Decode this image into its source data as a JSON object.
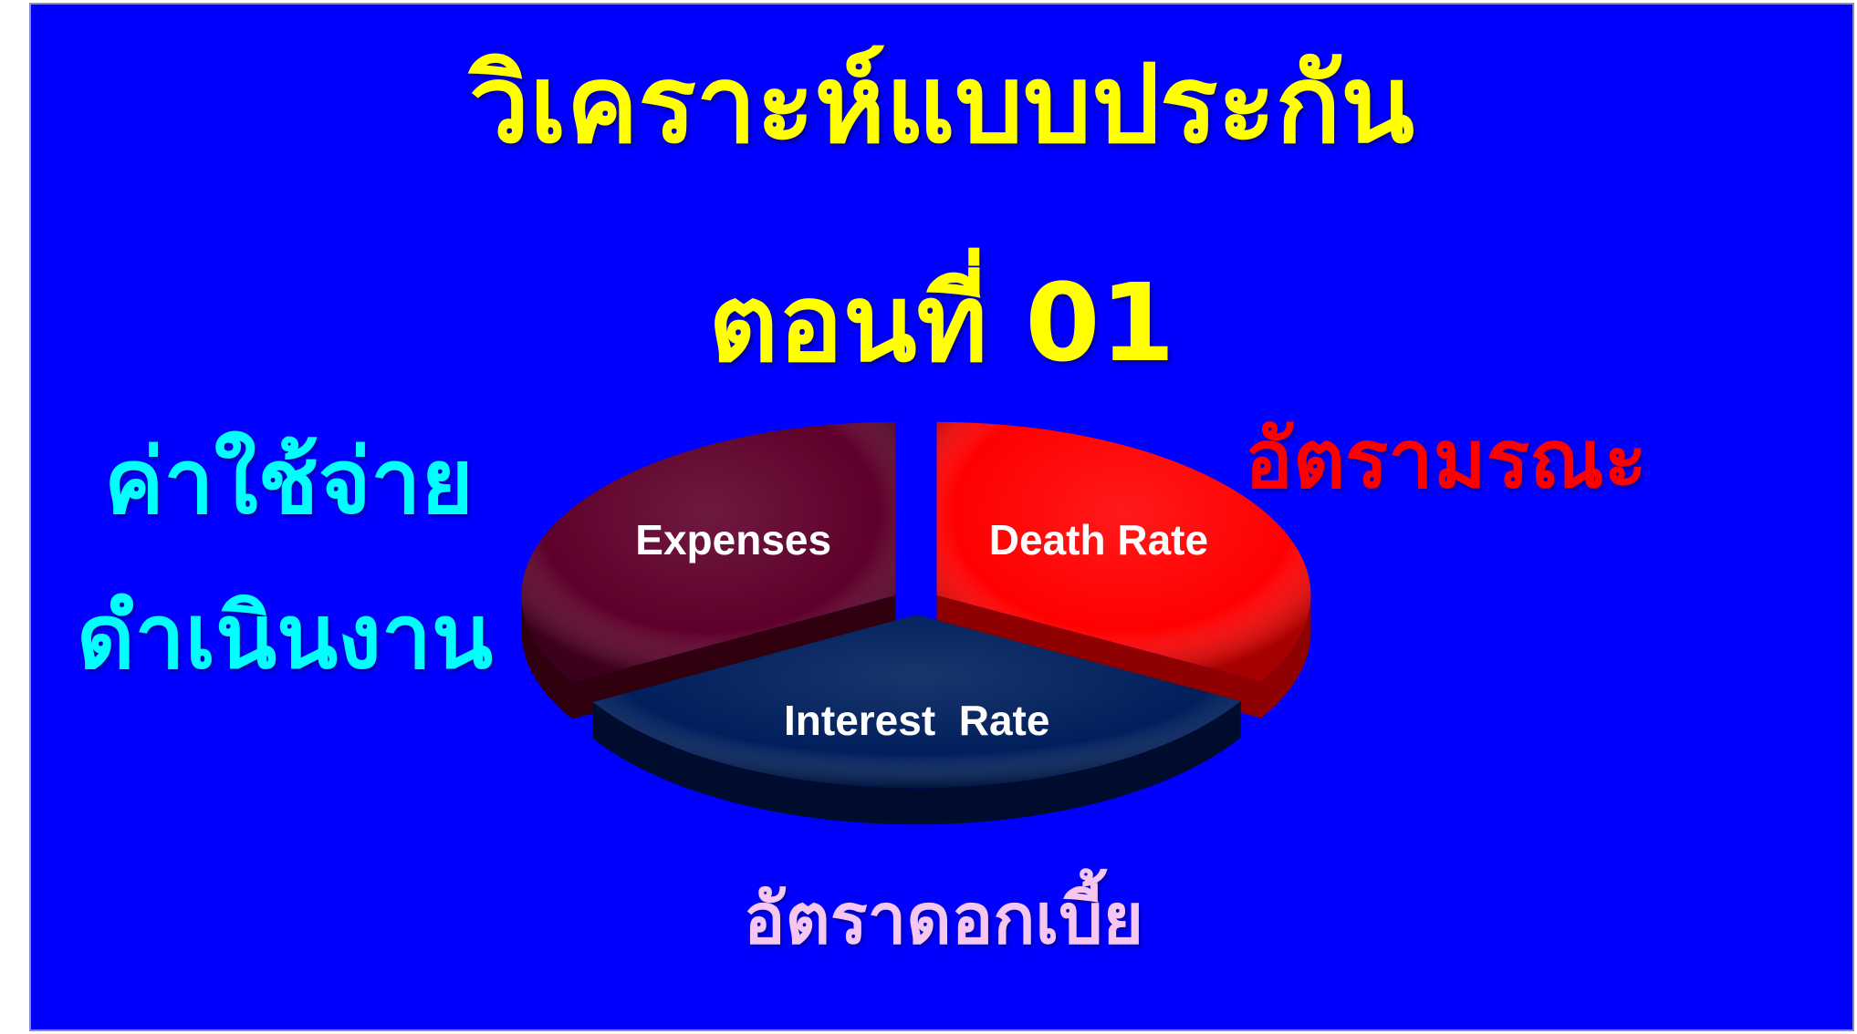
{
  "title": {
    "line1": "วิเคราะห์แบบประกัน",
    "line2": "ตอนที่ 01"
  },
  "labels": {
    "expenses_th_line1": "ค่าใช้จ่าย",
    "expenses_th_line2": "ดำเนินงาน",
    "death_th": "อัตรามรณะ",
    "interest_th": "อัตราดอกเบี้ย"
  },
  "colors": {
    "background": "#0000ff",
    "title": "#ffff00",
    "expenses_label": "#00ffff",
    "death_label": "#ff0000",
    "interest_label": "#f4c6f0",
    "data_label": "#ffffff"
  },
  "chart_data": {
    "type": "pie",
    "style": "3d-exploded",
    "title": "",
    "slices": [
      {
        "label": "Death Rate",
        "value": 33.3,
        "color": "#ff0000",
        "side_color": "#8f0000"
      },
      {
        "label": "Interest  Rate",
        "value": 33.3,
        "color": "#001f5c",
        "side_color": "#000c2e"
      },
      {
        "label": "Expenses",
        "value": 33.4,
        "color": "#5e002b",
        "side_color": "#30000f"
      }
    ],
    "legend": "none"
  }
}
